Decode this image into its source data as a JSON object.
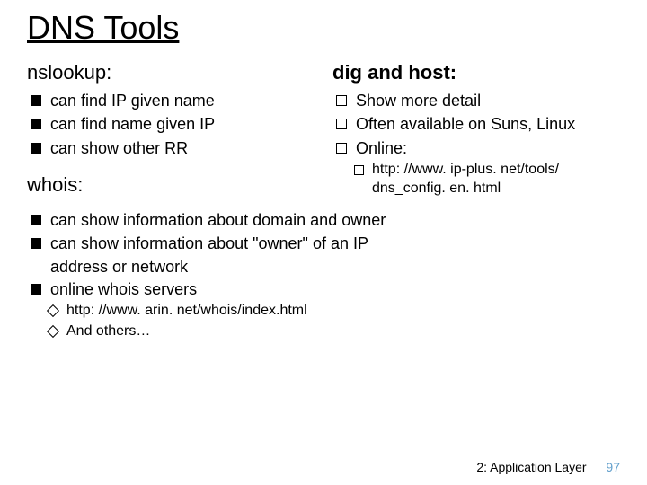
{
  "title": "DNS Tools",
  "left": {
    "nslookup_heading": "nslookup:",
    "nslookup_items": {
      "0": "can find IP given name",
      "1": "can find name given IP",
      "2": "can show other RR"
    },
    "whois_heading": "whois:"
  },
  "right": {
    "dighost_heading": "dig and host:",
    "dighost_items": {
      "0": "Show more detail",
      "1": "Often available on Suns, Linux",
      "2": "Online:"
    },
    "dighost_sub": {
      "0": "http: //www. ip-plus. net/tools/ dns_config. en. html"
    }
  },
  "whois_items": {
    "0": "can show information about domain and owner",
    "1": "can show information about \"owner\" of an IP",
    "1_cont": "address or network",
    "2": "online whois servers"
  },
  "whois_sub": {
    "0": "http: //www. arin. net/whois/index.html",
    "1": "And others…"
  },
  "footer": {
    "section": "2: Application Layer",
    "page": "97"
  },
  "colors": {
    "text": "#000000",
    "page_number": "#63a0cc",
    "background": "#ffffff"
  }
}
